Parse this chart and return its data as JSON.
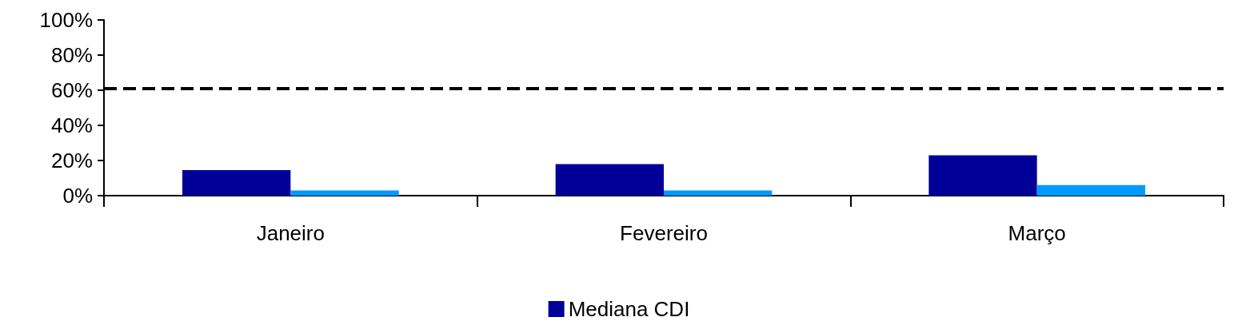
{
  "chart_data": {
    "type": "bar",
    "categories": [
      "Janeiro",
      "Fevereiro",
      "Março"
    ],
    "series": [
      {
        "name": "Mediana CDI",
        "color": "#000099",
        "values": [
          14.5,
          18,
          23
        ]
      },
      {
        "color": "#0099ff",
        "values": [
          3,
          3,
          6
        ]
      }
    ],
    "ylim": [
      0,
      100
    ],
    "yticks": [
      {
        "value": 0,
        "label": "0%"
      },
      {
        "value": 20,
        "label": "20%"
      },
      {
        "value": 40,
        "label": "40%"
      },
      {
        "value": 60,
        "label": "60%"
      },
      {
        "value": 80,
        "label": "80%"
      },
      {
        "value": 100,
        "label": "100%"
      }
    ],
    "ref_lines": [
      {
        "axis": "y",
        "value": 61,
        "color": "#000000",
        "line_style": "dashed"
      }
    ],
    "grid": false,
    "legend": "bottom"
  }
}
